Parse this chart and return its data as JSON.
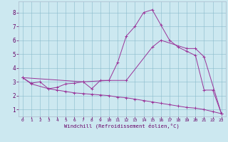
{
  "xlabel": "Windchill (Refroidissement éolien,°C)",
  "background_color": "#cce8f0",
  "grid_color": "#88bbcc",
  "line_color": "#993399",
  "xlim": [
    -0.5,
    23.5
  ],
  "ylim": [
    0.5,
    8.8
  ],
  "xticks": [
    0,
    1,
    2,
    3,
    4,
    5,
    6,
    7,
    8,
    9,
    10,
    11,
    12,
    13,
    14,
    15,
    16,
    17,
    18,
    19,
    20,
    21,
    22,
    23
  ],
  "yticks": [
    1,
    2,
    3,
    4,
    5,
    6,
    7,
    8
  ],
  "series1": [
    [
      0,
      3.3
    ],
    [
      1,
      2.9
    ],
    [
      2,
      3.0
    ],
    [
      3,
      2.5
    ],
    [
      4,
      2.6
    ],
    [
      5,
      2.85
    ],
    [
      6,
      2.9
    ],
    [
      7,
      3.0
    ],
    [
      8,
      2.5
    ],
    [
      9,
      3.1
    ],
    [
      10,
      3.1
    ],
    [
      11,
      4.4
    ],
    [
      12,
      6.3
    ],
    [
      13,
      7.0
    ],
    [
      14,
      8.0
    ],
    [
      15,
      8.2
    ],
    [
      16,
      7.1
    ],
    [
      17,
      6.0
    ],
    [
      18,
      5.5
    ],
    [
      19,
      5.2
    ],
    [
      20,
      4.9
    ],
    [
      21,
      2.4
    ],
    [
      22,
      2.4
    ],
    [
      23,
      0.7
    ]
  ],
  "series2": [
    [
      0,
      3.3
    ],
    [
      7,
      3.0
    ],
    [
      10,
      3.1
    ],
    [
      12,
      3.1
    ],
    [
      15,
      5.5
    ],
    [
      16,
      6.0
    ],
    [
      19,
      5.4
    ],
    [
      20,
      5.4
    ],
    [
      21,
      4.8
    ],
    [
      23,
      0.7
    ]
  ],
  "series3": [
    [
      0,
      3.3
    ],
    [
      1,
      2.85
    ],
    [
      3,
      2.5
    ],
    [
      4,
      2.4
    ],
    [
      5,
      2.3
    ],
    [
      6,
      2.2
    ],
    [
      7,
      2.15
    ],
    [
      8,
      2.1
    ],
    [
      9,
      2.05
    ],
    [
      10,
      2.0
    ],
    [
      11,
      1.9
    ],
    [
      12,
      1.85
    ],
    [
      13,
      1.75
    ],
    [
      14,
      1.65
    ],
    [
      15,
      1.55
    ],
    [
      16,
      1.45
    ],
    [
      17,
      1.35
    ],
    [
      18,
      1.25
    ],
    [
      19,
      1.15
    ],
    [
      20,
      1.1
    ],
    [
      21,
      1.0
    ],
    [
      22,
      0.85
    ],
    [
      23,
      0.7
    ]
  ]
}
